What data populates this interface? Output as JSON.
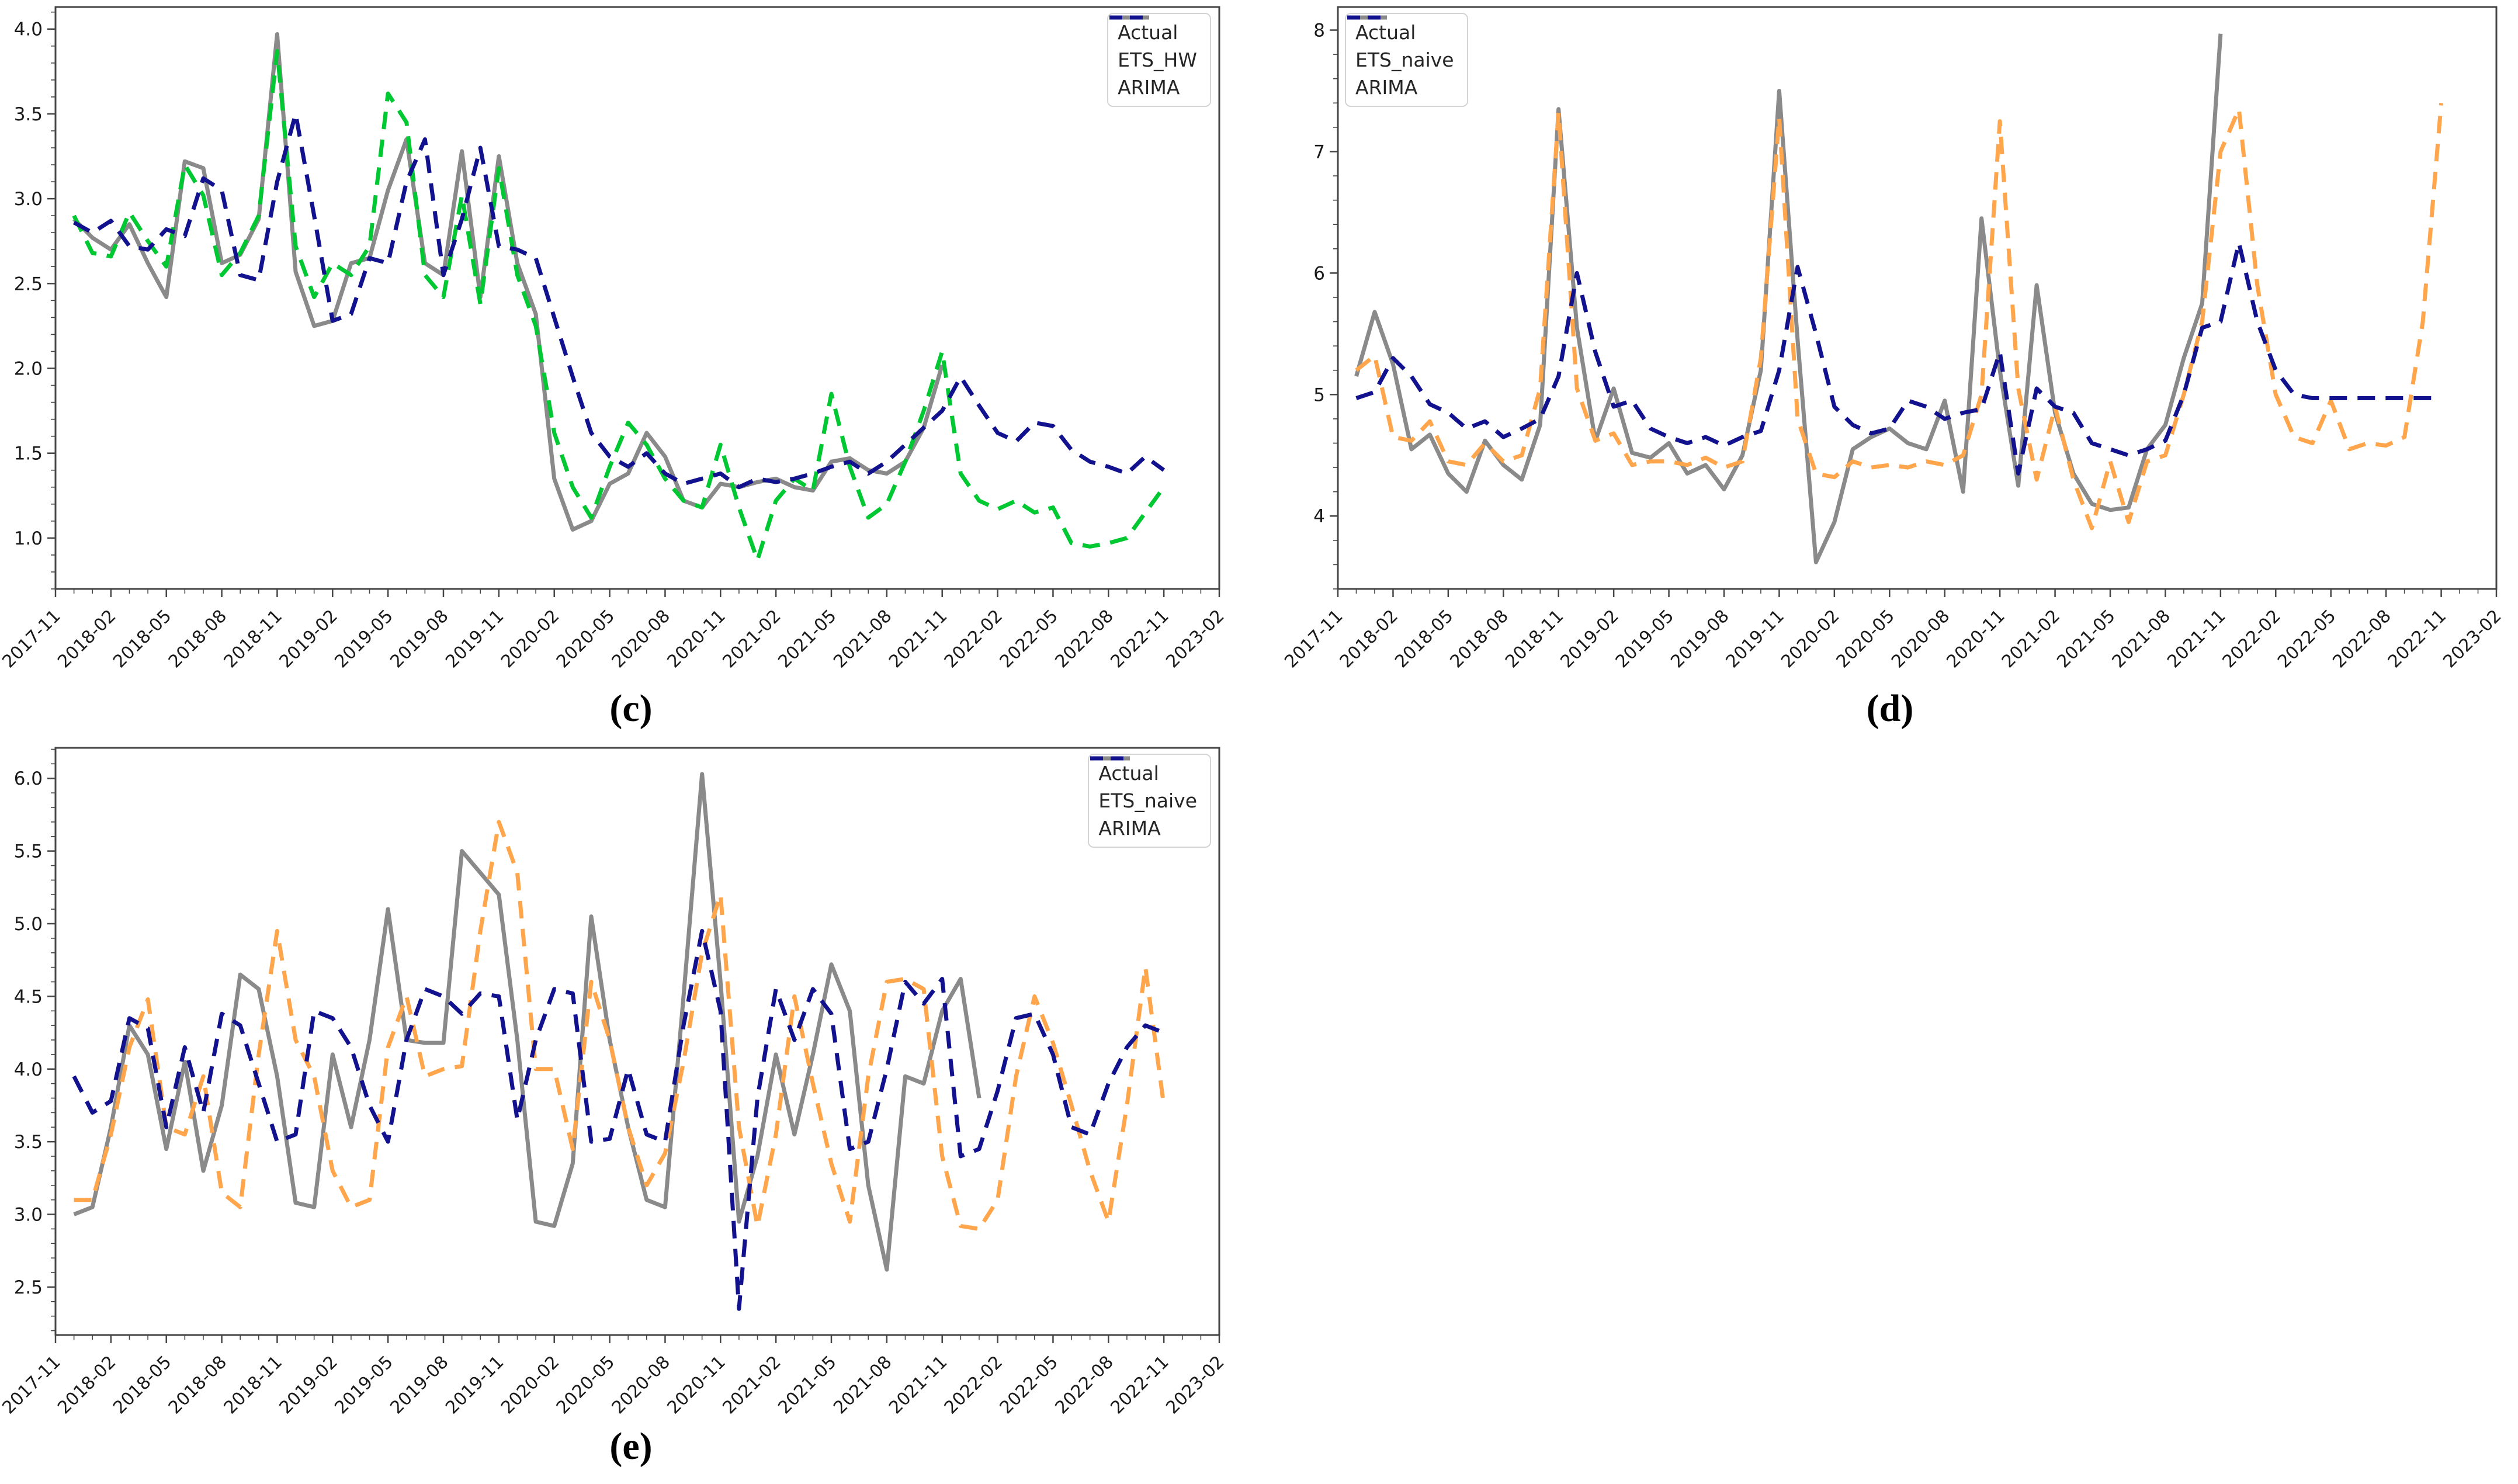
{
  "captions": {
    "c": "(c)",
    "d": "(d)",
    "e": "(e)"
  },
  "colors": {
    "actual": "#8a8a8a",
    "ets_hw": "#00c832",
    "ets_naive": "#ffa64d",
    "arima": "#12128e",
    "spine": "#454545",
    "tick_text": "#1a1a1a"
  },
  "chart_data": [
    {
      "id": "c",
      "type": "line",
      "caption": "(c)",
      "x_axis": {
        "months_total": 63,
        "major_step_months": 3,
        "tick_labels": [
          "2017-11",
          "2018-02",
          "2018-05",
          "2018-08",
          "2018-11",
          "2019-02",
          "2019-05",
          "2019-08",
          "2019-11",
          "2020-02",
          "2020-05",
          "2020-08",
          "2020-11",
          "2021-02",
          "2021-05",
          "2021-08",
          "2021-11",
          "2022-02",
          "2022-05",
          "2022-08",
          "2022-11",
          "2023-02"
        ]
      },
      "y_axis": {
        "lim": [
          0.7,
          4.13
        ],
        "minor_step": 0.1,
        "ticks": [
          {
            "v": 1.0,
            "label": "1.0"
          },
          {
            "v": 1.5,
            "label": "1.5"
          },
          {
            "v": 2.0,
            "label": "2.0"
          },
          {
            "v": 2.5,
            "label": "2.5"
          },
          {
            "v": 3.0,
            "label": "3.0"
          },
          {
            "v": 3.5,
            "label": "3.5"
          },
          {
            "v": 4.0,
            "label": "4.0"
          }
        ]
      },
      "legend": {
        "position": "upper-right"
      },
      "series": [
        {
          "name": "Actual",
          "color_key": "actual",
          "dash": "solid",
          "start_month": 1,
          "values": [
            2.88,
            2.77,
            2.7,
            2.85,
            2.62,
            2.42,
            3.22,
            3.18,
            2.62,
            2.67,
            2.88,
            3.97,
            2.57,
            2.25,
            2.28,
            2.62,
            2.65,
            3.05,
            3.35,
            2.62,
            2.55,
            3.28,
            2.42,
            3.25,
            2.62,
            2.32,
            1.35,
            1.05,
            1.1,
            1.32,
            1.38,
            1.62,
            1.48,
            1.22,
            1.18,
            1.32,
            1.3,
            1.33,
            1.35,
            1.3,
            1.28,
            1.45,
            1.47,
            1.4,
            1.38,
            1.45,
            1.65,
            2.02
          ]
        },
        {
          "name": "ETS_HW",
          "color_key": "ets_hw",
          "dash": "dashed",
          "start_month": 1,
          "values": [
            2.9,
            2.68,
            2.66,
            2.92,
            2.75,
            2.6,
            3.2,
            3.02,
            2.55,
            2.68,
            2.9,
            3.87,
            2.72,
            2.42,
            2.62,
            2.55,
            2.72,
            3.62,
            3.45,
            2.55,
            2.42,
            3.02,
            2.38,
            3.18,
            2.55,
            2.25,
            1.62,
            1.3,
            1.12,
            1.42,
            1.68,
            1.55,
            1.35,
            1.22,
            1.18,
            1.55,
            1.18,
            0.87,
            1.22,
            1.35,
            1.28,
            1.85,
            1.42,
            1.12,
            1.2,
            1.45,
            1.75,
            2.1,
            1.38,
            1.22,
            1.17,
            1.22,
            1.15,
            1.18,
            0.97,
            0.95,
            0.97,
            1.0,
            1.15,
            1.3
          ]
        },
        {
          "name": "ARIMA",
          "color_key": "arima",
          "dash": "dashed",
          "start_month": 1,
          "values": [
            2.86,
            2.8,
            2.87,
            2.72,
            2.7,
            2.82,
            2.78,
            3.12,
            3.05,
            2.55,
            2.52,
            3.1,
            3.5,
            2.9,
            2.28,
            2.32,
            2.65,
            2.62,
            3.1,
            3.35,
            2.55,
            2.88,
            3.3,
            2.72,
            2.7,
            2.65,
            2.3,
            1.95,
            1.62,
            1.48,
            1.42,
            1.5,
            1.38,
            1.32,
            1.35,
            1.38,
            1.3,
            1.35,
            1.33,
            1.35,
            1.38,
            1.42,
            1.45,
            1.38,
            1.45,
            1.55,
            1.65,
            1.75,
            1.95,
            1.78,
            1.62,
            1.57,
            1.68,
            1.66,
            1.52,
            1.45,
            1.42,
            1.38,
            1.48,
            1.4
          ]
        }
      ]
    },
    {
      "id": "d",
      "type": "line",
      "caption": "(d)",
      "x_axis": {
        "months_total": 63,
        "major_step_months": 3,
        "tick_labels": [
          "2017-11",
          "2018-02",
          "2018-05",
          "2018-08",
          "2018-11",
          "2019-02",
          "2019-05",
          "2019-08",
          "2019-11",
          "2020-02",
          "2020-05",
          "2020-08",
          "2020-11",
          "2021-02",
          "2021-05",
          "2021-08",
          "2021-11",
          "2022-02",
          "2022-05",
          "2022-08",
          "2022-11",
          "2023-02"
        ]
      },
      "y_axis": {
        "lim": [
          3.4,
          8.19
        ],
        "minor_step": 0.2,
        "ticks": [
          {
            "v": 4,
            "label": "4"
          },
          {
            "v": 5,
            "label": "5"
          },
          {
            "v": 6,
            "label": "6"
          },
          {
            "v": 7,
            "label": "7"
          },
          {
            "v": 8,
            "label": "8"
          }
        ]
      },
      "legend": {
        "position": "upper-left"
      },
      "series": [
        {
          "name": "Actual",
          "color_key": "actual",
          "dash": "solid",
          "start_month": 1,
          "values": [
            5.15,
            5.68,
            5.25,
            4.55,
            4.67,
            4.35,
            4.2,
            4.62,
            4.42,
            4.3,
            4.75,
            7.35,
            5.55,
            4.62,
            5.05,
            4.52,
            4.48,
            4.6,
            4.35,
            4.42,
            4.22,
            4.5,
            5.2,
            7.5,
            5.45,
            3.62,
            3.95,
            4.55,
            4.65,
            4.72,
            4.6,
            4.55,
            4.95,
            4.2,
            6.45,
            5.2,
            4.25,
            5.9,
            4.85,
            4.35,
            4.1,
            4.05,
            4.07,
            4.55,
            4.75,
            5.3,
            5.75,
            7.97
          ]
        },
        {
          "name": "ETS_naive",
          "color_key": "ets_naive",
          "dash": "dashed",
          "start_month": 1,
          "values": [
            5.2,
            5.32,
            4.65,
            4.62,
            4.78,
            4.45,
            4.42,
            4.6,
            4.45,
            4.5,
            5.05,
            7.32,
            5.05,
            4.62,
            4.68,
            4.42,
            4.45,
            4.45,
            4.42,
            4.48,
            4.4,
            4.45,
            5.3,
            7.28,
            4.8,
            4.35,
            4.32,
            4.45,
            4.4,
            4.42,
            4.4,
            4.45,
            4.42,
            4.5,
            5.0,
            7.25,
            5.05,
            4.3,
            4.9,
            4.3,
            3.9,
            4.45,
            3.95,
            4.45,
            4.5,
            5.0,
            5.6,
            7.0,
            7.35,
            5.9,
            5.0,
            4.65,
            4.6,
            4.95,
            4.55,
            4.6,
            4.58,
            4.65,
            5.6,
            7.4
          ]
        },
        {
          "name": "ARIMA",
          "color_key": "arima",
          "dash": "dashed",
          "start_month": 1,
          "values": [
            4.97,
            5.02,
            5.3,
            5.15,
            4.92,
            4.85,
            4.72,
            4.78,
            4.65,
            4.72,
            4.8,
            5.15,
            6.0,
            5.35,
            4.9,
            4.95,
            4.72,
            4.65,
            4.6,
            4.65,
            4.58,
            4.65,
            4.7,
            5.2,
            6.05,
            5.5,
            4.9,
            4.75,
            4.68,
            4.72,
            4.95,
            4.9,
            4.8,
            4.85,
            4.88,
            5.35,
            4.35,
            5.05,
            4.9,
            4.85,
            4.6,
            4.55,
            4.5,
            4.55,
            4.62,
            5.0,
            5.55,
            5.6,
            6.25,
            5.6,
            5.2,
            5.0,
            4.97,
            4.97,
            4.97,
            4.97,
            4.97,
            4.97,
            4.97,
            4.97
          ]
        }
      ]
    },
    {
      "id": "e",
      "type": "line",
      "caption": "(e)",
      "x_axis": {
        "months_total": 63,
        "major_step_months": 3,
        "tick_labels": [
          "2017-11",
          "2018-02",
          "2018-05",
          "2018-08",
          "2018-11",
          "2019-02",
          "2019-05",
          "2019-08",
          "2019-11",
          "2020-02",
          "2020-05",
          "2020-08",
          "2020-11",
          "2021-02",
          "2021-05",
          "2021-08",
          "2021-11",
          "2022-02",
          "2022-05",
          "2022-08",
          "2022-11",
          "2023-02"
        ]
      },
      "y_axis": {
        "lim": [
          2.17,
          6.21
        ],
        "minor_step": 0.1,
        "ticks": [
          {
            "v": 2.5,
            "label": "2.5"
          },
          {
            "v": 3.0,
            "label": "3.0"
          },
          {
            "v": 3.5,
            "label": "3.5"
          },
          {
            "v": 4.0,
            "label": "4.0"
          },
          {
            "v": 4.5,
            "label": "4.5"
          },
          {
            "v": 5.0,
            "label": "5.0"
          },
          {
            "v": 5.5,
            "label": "5.5"
          },
          {
            "v": 6.0,
            "label": "6.0"
          }
        ]
      },
      "legend": {
        "position": "upper-right"
      },
      "series": [
        {
          "name": "Actual",
          "color_key": "actual",
          "dash": "solid",
          "start_month": 1,
          "values": [
            3.0,
            3.05,
            3.6,
            4.3,
            4.1,
            3.45,
            4.05,
            3.3,
            3.75,
            4.65,
            4.55,
            3.95,
            3.08,
            3.05,
            4.1,
            3.6,
            4.2,
            5.1,
            4.2,
            4.18,
            4.18,
            5.5,
            5.35,
            5.2,
            4.2,
            2.95,
            2.92,
            3.35,
            5.05,
            4.2,
            3.6,
            3.1,
            3.05,
            4.5,
            6.03,
            4.6,
            2.95,
            3.4,
            4.1,
            3.55,
            4.1,
            4.72,
            4.4,
            3.2,
            2.62,
            3.95,
            3.9,
            4.4,
            4.62,
            3.8
          ]
        },
        {
          "name": "ETS_naive",
          "color_key": "ets_naive",
          "dash": "dashed",
          "start_month": 1,
          "values": [
            3.1,
            3.1,
            3.55,
            4.15,
            4.48,
            3.6,
            3.55,
            3.95,
            3.15,
            3.05,
            4.1,
            4.95,
            4.2,
            3.95,
            3.3,
            3.05,
            3.1,
            4.15,
            4.5,
            3.95,
            4.0,
            4.02,
            4.95,
            5.7,
            5.35,
            4.0,
            4.0,
            3.45,
            4.6,
            4.2,
            3.6,
            3.2,
            3.42,
            4.05,
            4.8,
            5.2,
            3.6,
            2.92,
            3.55,
            4.5,
            3.9,
            3.35,
            2.95,
            3.95,
            4.6,
            4.62,
            4.55,
            3.4,
            2.92,
            2.9,
            3.1,
            3.95,
            4.5,
            4.18,
            3.75,
            3.3,
            2.95,
            3.75,
            4.7,
            3.75
          ]
        },
        {
          "name": "ARIMA",
          "color_key": "arima",
          "dash": "dashed",
          "start_month": 1,
          "values": [
            3.95,
            3.7,
            3.78,
            4.35,
            4.28,
            3.6,
            4.15,
            3.7,
            4.38,
            4.3,
            3.9,
            3.5,
            3.55,
            4.4,
            4.35,
            4.15,
            3.75,
            3.5,
            4.2,
            4.55,
            4.5,
            4.38,
            4.52,
            4.5,
            3.65,
            4.2,
            4.55,
            4.52,
            3.5,
            3.52,
            4.0,
            3.55,
            3.5,
            4.3,
            4.95,
            4.4,
            2.35,
            3.8,
            4.55,
            4.2,
            4.55,
            4.38,
            3.45,
            3.5,
            4.0,
            4.6,
            4.45,
            4.62,
            3.4,
            3.45,
            3.85,
            4.35,
            4.38,
            4.1,
            3.6,
            3.55,
            3.9,
            4.15,
            4.3,
            4.25
          ]
        }
      ]
    }
  ]
}
